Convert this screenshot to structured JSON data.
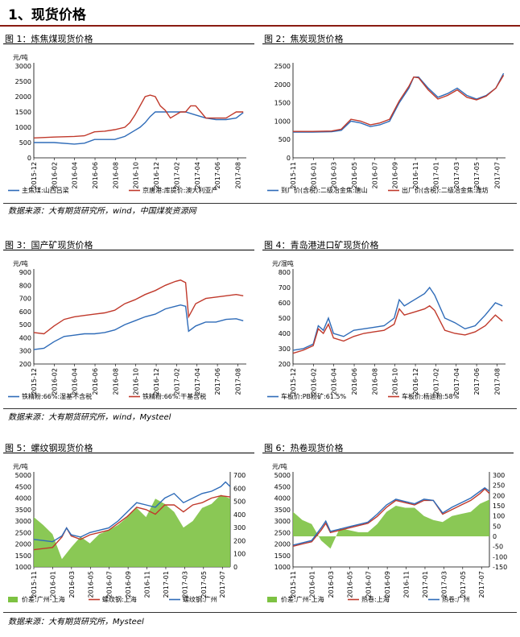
{
  "page": {
    "title": "1、现货价格"
  },
  "sources": [
    "数据来源：大有期货研究所，wind，中国煤炭资源网",
    "数据来源：大有期货研究所，wind，Mysteel",
    "数据来源：大有期货研究所，Mysteel"
  ],
  "colors": {
    "red": "#c0392b",
    "blue": "#2e6bb8",
    "green": "#7dc242",
    "title_rule": "#8a1b12"
  },
  "chart_data": [
    {
      "type": "line",
      "title": "图 1：炼焦煤现货价格",
      "unit": "元/吨",
      "ylim": [
        0,
        3000
      ],
      "yticks": [
        0,
        500,
        1000,
        1500,
        2000,
        2500,
        3000
      ],
      "xticks": [
        "2015-12",
        "2016-02",
        "2016-04",
        "2016-06",
        "2016-08",
        "2016-10",
        "2016-12",
        "2017-02",
        "2017-04",
        "2017-06",
        "2017-08"
      ],
      "x_range": [
        0,
        21
      ],
      "series": [
        {
          "name": "主焦煤:山西吕梁",
          "color": "#2e6bb8",
          "x": [
            0,
            2,
            4,
            5,
            6,
            7,
            8,
            9,
            10,
            10.5,
            11,
            11.5,
            12,
            13,
            14,
            15,
            16,
            17,
            18,
            19,
            20,
            20.7
          ],
          "y": [
            500,
            500,
            450,
            480,
            600,
            600,
            600,
            700,
            900,
            1000,
            1150,
            1350,
            1500,
            1500,
            1500,
            1500,
            1400,
            1300,
            1250,
            1250,
            1300,
            1480
          ]
        },
        {
          "name": "京唐港:库提价:澳大利亚产",
          "color": "#c0392b",
          "x": [
            0,
            2,
            4,
            5,
            6,
            7,
            8,
            9,
            9.5,
            10,
            10.5,
            11,
            11.5,
            12,
            12.5,
            13,
            13.5,
            14,
            14.5,
            15,
            15.5,
            16,
            16.5,
            17,
            18,
            19,
            19.5,
            20,
            20.7
          ],
          "y": [
            650,
            680,
            700,
            720,
            850,
            870,
            920,
            1000,
            1150,
            1400,
            1700,
            2000,
            2050,
            2000,
            1700,
            1550,
            1300,
            1400,
            1500,
            1500,
            1700,
            1700,
            1500,
            1300,
            1300,
            1300,
            1400,
            1500,
            1500
          ]
        }
      ]
    },
    {
      "type": "line",
      "title": "图 2：焦炭现货价格",
      "unit": "",
      "ylim": [
        0,
        2500
      ],
      "yticks": [
        0,
        500,
        1000,
        1500,
        2000,
        2500
      ],
      "xticks": [
        "2015-11",
        "2016-01",
        "2016-03",
        "2016-05",
        "2016-07",
        "2016-09",
        "2016-11",
        "2017-01",
        "2017-03",
        "2017-05",
        "2017-07"
      ],
      "x_range": [
        0,
        22
      ],
      "series": [
        {
          "name": "到厂价(含税):二级冶金焦:唐山",
          "color": "#2e6bb8",
          "x": [
            0,
            2,
            4,
            5,
            6,
            7,
            8,
            9,
            10,
            11,
            12,
            12.5,
            13,
            14,
            15,
            16,
            17,
            18,
            19,
            20,
            21,
            21.8
          ],
          "y": [
            700,
            700,
            710,
            750,
            1000,
            950,
            850,
            900,
            1000,
            1500,
            1900,
            2200,
            2200,
            1900,
            1650,
            1750,
            1900,
            1700,
            1600,
            1700,
            1900,
            2300
          ]
        },
        {
          "name": "出厂价(含税):二级冶金焦:潍坊",
          "color": "#c0392b",
          "x": [
            0,
            2,
            4,
            5,
            6,
            7,
            8,
            9,
            10,
            11,
            12,
            12.5,
            13,
            14,
            15,
            16,
            17,
            18,
            19,
            20,
            21,
            21.8
          ],
          "y": [
            720,
            720,
            730,
            780,
            1050,
            1000,
            900,
            950,
            1050,
            1550,
            1950,
            2200,
            2180,
            1850,
            1600,
            1700,
            1850,
            1650,
            1580,
            1680,
            1900,
            2250
          ]
        }
      ]
    },
    {
      "type": "line",
      "title": "图 3：国产矿现货价格",
      "unit": "元/吨",
      "ylim": [
        200,
        900
      ],
      "yticks": [
        200,
        300,
        400,
        500,
        600,
        700,
        800,
        900
      ],
      "xticks": [
        "2015-12",
        "2016-02",
        "2016-04",
        "2016-06",
        "2016-08",
        "2016-10",
        "2016-12",
        "2017-02",
        "2017-04",
        "2017-06",
        "2017-08"
      ],
      "x_range": [
        0,
        21
      ],
      "series": [
        {
          "name": "铁精粉:66%:湿基不含税",
          "color": "#2e6bb8",
          "x": [
            0,
            1,
            2,
            3,
            4,
            5,
            6,
            7,
            8,
            9,
            10,
            11,
            12,
            13,
            14,
            14.5,
            15,
            15.3,
            16,
            17,
            18,
            19,
            20,
            20.7
          ],
          "y": [
            310,
            320,
            370,
            410,
            420,
            430,
            430,
            440,
            460,
            500,
            530,
            560,
            580,
            620,
            640,
            650,
            640,
            450,
            490,
            520,
            520,
            540,
            545,
            530
          ]
        },
        {
          "name": "铁精粉:66%:干基含税",
          "color": "#c0392b",
          "x": [
            0,
            1,
            2,
            3,
            4,
            5,
            6,
            7,
            8,
            9,
            10,
            11,
            12,
            13,
            14,
            14.5,
            15,
            15.3,
            16,
            17,
            18,
            19,
            20,
            20.7
          ],
          "y": [
            440,
            430,
            490,
            540,
            560,
            570,
            580,
            590,
            610,
            660,
            690,
            730,
            760,
            800,
            830,
            840,
            820,
            560,
            660,
            700,
            710,
            720,
            730,
            720
          ]
        }
      ]
    },
    {
      "type": "line",
      "title": "图 4：青岛港进口矿现货价格",
      "unit": "元/湿吨",
      "ylim": [
        200,
        800
      ],
      "yticks": [
        200,
        300,
        400,
        500,
        600,
        700,
        800
      ],
      "xticks": [
        "2015-12",
        "2016-02",
        "2016-04",
        "2016-06",
        "2016-08",
        "2016-10",
        "2016-12",
        "2017-02",
        "2017-04",
        "2017-06",
        "2017-08"
      ],
      "x_range": [
        0,
        21
      ],
      "series": [
        {
          "name": "车板价:PB粉矿:61.5%",
          "color": "#2e6bb8",
          "x": [
            0,
            1,
            2,
            2.5,
            3,
            3.5,
            4,
            5,
            6,
            7,
            8,
            9,
            10,
            10.5,
            11,
            12,
            13,
            13.5,
            14,
            15,
            16,
            17,
            18,
            19,
            20,
            20.7
          ],
          "y": [
            290,
            300,
            330,
            450,
            420,
            500,
            400,
            380,
            420,
            430,
            440,
            450,
            500,
            620,
            580,
            620,
            660,
            700,
            650,
            500,
            470,
            430,
            450,
            520,
            600,
            580
          ]
        },
        {
          "name": "车板价:杨迪粉:58%",
          "color": "#c0392b",
          "x": [
            0,
            1,
            2,
            2.5,
            3,
            3.5,
            4,
            5,
            6,
            7,
            8,
            9,
            10,
            10.5,
            11,
            12,
            13,
            13.5,
            14,
            15,
            16,
            17,
            18,
            19,
            20,
            20.7
          ],
          "y": [
            270,
            290,
            320,
            430,
            400,
            460,
            370,
            350,
            380,
            400,
            410,
            420,
            460,
            560,
            520,
            540,
            560,
            580,
            550,
            420,
            400,
            390,
            410,
            450,
            520,
            480
          ]
        }
      ]
    },
    {
      "type": "line+bar",
      "title": "图 5：螺纹钢现货价格",
      "unit": "元/吨",
      "ylim": [
        1000,
        5000
      ],
      "yticks": [
        1000,
        1500,
        2000,
        2500,
        3000,
        3500,
        4000,
        4500,
        5000
      ],
      "y2lim": [
        0,
        700
      ],
      "y2ticks": [
        0,
        100,
        200,
        300,
        400,
        500,
        600,
        700
      ],
      "xticks": [
        "2015-11",
        "2016-01",
        "2016-03",
        "2016-05",
        "2016-07",
        "2016-09",
        "2016-11",
        "2017-01",
        "2017-03",
        "2017-05",
        "2017-07"
      ],
      "x_range": [
        0,
        21
      ],
      "series": [
        {
          "name": "价差:广州-上海",
          "color": "#7dc242",
          "axis": "right",
          "x": [
            0,
            1,
            2,
            3,
            4,
            5,
            6,
            7,
            8,
            9,
            10,
            11,
            12,
            13,
            14,
            15,
            16,
            17,
            18,
            19,
            20,
            21
          ],
          "y": [
            380,
            320,
            250,
            60,
            150,
            230,
            180,
            250,
            280,
            320,
            380,
            450,
            380,
            520,
            480,
            420,
            300,
            350,
            450,
            480,
            550,
            520
          ]
        },
        {
          "name": "螺纹钢:上海",
          "color": "#c0392b",
          "x": [
            0,
            1,
            2,
            3,
            3.5,
            4,
            5,
            6,
            7,
            8,
            9,
            10,
            11,
            12,
            13,
            14,
            15,
            16,
            17,
            18,
            19,
            20,
            21
          ],
          "y": [
            1750,
            1800,
            1850,
            2300,
            2700,
            2350,
            2200,
            2400,
            2500,
            2600,
            2900,
            3200,
            3600,
            3500,
            3300,
            3700,
            3700,
            3400,
            3700,
            3800,
            4000,
            4100,
            4050
          ]
        },
        {
          "name": "螺纹钢:广州",
          "color": "#2e6bb8",
          "x": [
            0,
            1,
            2,
            3,
            3.5,
            4,
            5,
            6,
            7,
            8,
            9,
            10,
            11,
            12,
            13,
            14,
            15,
            16,
            17,
            18,
            19,
            20,
            20.5,
            21
          ],
          "y": [
            2200,
            2150,
            2100,
            2350,
            2700,
            2400,
            2300,
            2500,
            2600,
            2700,
            3000,
            3400,
            3800,
            3700,
            3600,
            4000,
            4200,
            3800,
            4000,
            4200,
            4300,
            4500,
            4700,
            4500
          ]
        }
      ]
    },
    {
      "type": "line+bar",
      "title": "图 6：热卷现货价格",
      "unit": "元/吨",
      "ylim": [
        1000,
        5000
      ],
      "yticks": [
        1000,
        1500,
        2000,
        2500,
        3000,
        3500,
        4000,
        4500,
        5000
      ],
      "y2lim": [
        -150,
        300
      ],
      "y2ticks": [
        -150,
        -100,
        -50,
        0,
        50,
        100,
        150,
        200,
        250,
        300
      ],
      "xticks": [
        "2015-11",
        "2016-01",
        "2016-03",
        "2016-05",
        "2016-07",
        "2016-09",
        "2016-11",
        "2017-01",
        "2017-03",
        "2017-05",
        "2017-07"
      ],
      "x_range": [
        0,
        21
      ],
      "series": [
        {
          "name": "价差:广州-上海",
          "color": "#7dc242",
          "axis": "right",
          "x": [
            0,
            1,
            2,
            3,
            4,
            5,
            6,
            7,
            8,
            9,
            10,
            11,
            12,
            13,
            14,
            15,
            16,
            17,
            18,
            19,
            20,
            21
          ],
          "y": [
            120,
            80,
            60,
            -20,
            -60,
            40,
            30,
            20,
            20,
            60,
            120,
            150,
            140,
            140,
            100,
            80,
            70,
            100,
            110,
            120,
            160,
            180
          ]
        },
        {
          "name": "热卷:上海",
          "color": "#c0392b",
          "x": [
            0,
            1,
            2,
            3,
            3.5,
            4,
            5,
            6,
            7,
            8,
            9,
            10,
            11,
            12,
            13,
            14,
            15,
            16,
            17,
            18,
            19,
            20,
            20.5,
            21
          ],
          "y": [
            1900,
            2000,
            2100,
            2600,
            2900,
            2500,
            2600,
            2700,
            2800,
            2900,
            3200,
            3600,
            3900,
            3800,
            3700,
            3900,
            3900,
            3300,
            3500,
            3700,
            3900,
            4200,
            4400,
            4200
          ]
        },
        {
          "name": "热卷:广州",
          "color": "#2e6bb8",
          "x": [
            0,
            1,
            2,
            3,
            3.5,
            4,
            5,
            6,
            7,
            8,
            9,
            10,
            11,
            12,
            13,
            14,
            15,
            16,
            17,
            18,
            19,
            20,
            20.5,
            21
          ],
          "y": [
            1950,
            2050,
            2150,
            2700,
            3000,
            2550,
            2650,
            2750,
            2850,
            2950,
            3300,
            3700,
            3950,
            3850,
            3750,
            3950,
            3900,
            3350,
            3600,
            3800,
            4000,
            4300,
            4450,
            4300
          ]
        }
      ]
    }
  ]
}
